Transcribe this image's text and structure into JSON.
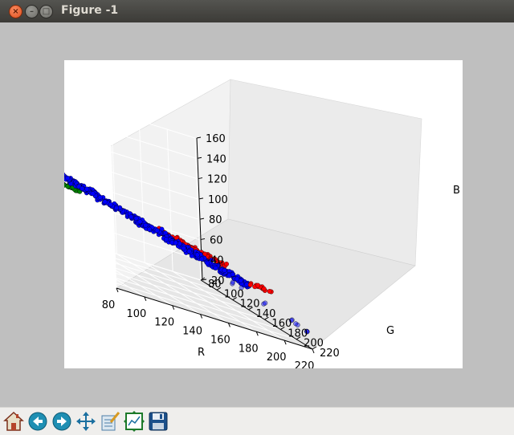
{
  "window": {
    "title": "Figure -1",
    "close_glyph": "×",
    "minimize_glyph": "–",
    "maximize_glyph": "□"
  },
  "toolbar": {
    "buttons": [
      {
        "name": "home-button",
        "icon": "home-icon"
      },
      {
        "name": "back-button",
        "icon": "arrow-left-icon"
      },
      {
        "name": "forward-button",
        "icon": "arrow-right-icon"
      },
      {
        "name": "pan-button",
        "icon": "move-icon"
      },
      {
        "name": "zoom-button",
        "icon": "zoom-rect-icon"
      },
      {
        "name": "subplots-button",
        "icon": "subplots-icon"
      },
      {
        "name": "save-button",
        "icon": "floppy-icon"
      }
    ]
  },
  "chart_data": {
    "type": "scatter",
    "projection": "3d",
    "xlabel": "R",
    "ylabel": "G",
    "zlabel": "B",
    "x_ticks": [
      "80",
      "100",
      "120",
      "140",
      "160",
      "180",
      "200",
      "220"
    ],
    "y_ticks": [
      "80",
      "100",
      "120",
      "140",
      "160",
      "180",
      "200",
      "220"
    ],
    "z_ticks": [
      "20",
      "40",
      "60",
      "80",
      "100",
      "120",
      "140",
      "160"
    ],
    "xlim": [
      80,
      220
    ],
    "ylim": [
      80,
      220
    ],
    "zlim": [
      20,
      160
    ],
    "grid": true,
    "series": [
      {
        "color": "#0000ff",
        "approx_cluster": "R 90-200, G 100-200, B 40-100, dense"
      },
      {
        "color": "#ff0000",
        "approx_cluster": "R 150-210, G 160-200, B 60-90"
      },
      {
        "color": "#008000",
        "approx_cluster": "R 80-100, G 130-150, B 85-95"
      }
    ]
  }
}
